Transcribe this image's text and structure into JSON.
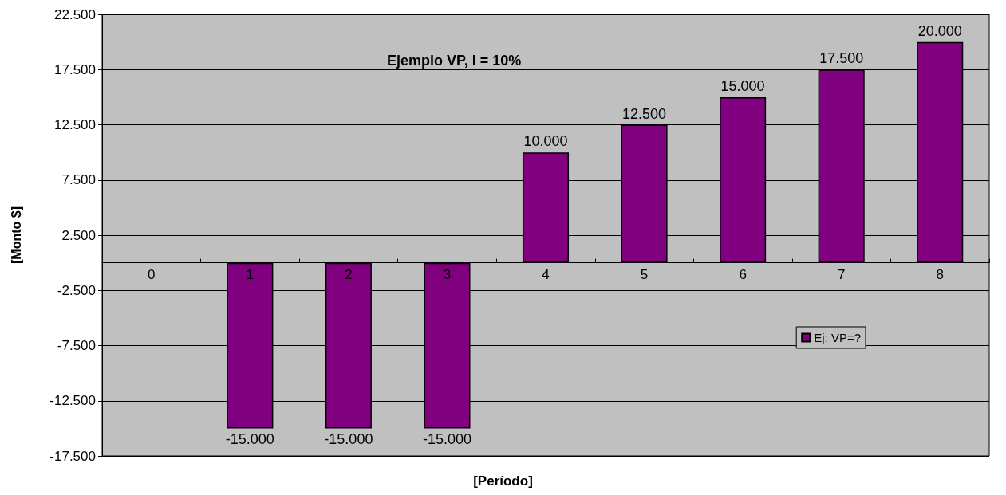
{
  "chart_data": {
    "type": "bar",
    "title": "Ejemplo VP, i = 10%",
    "xlabel": "[Período]",
    "ylabel": "[Monto $]",
    "categories": [
      "0",
      "1",
      "2",
      "3",
      "4",
      "5",
      "6",
      "7",
      "8"
    ],
    "series": [
      {
        "name": "Ej: VP=?",
        "color": "#800080",
        "values": [
          null,
          -15000,
          -15000,
          -15000,
          10000,
          12500,
          15000,
          17500,
          20000
        ],
        "value_labels": [
          null,
          "-15.000",
          "-15.000",
          "-15.000",
          "10.000",
          "12.500",
          "15.000",
          "17.500",
          "20.000"
        ]
      }
    ],
    "ylim": [
      -17500,
      22500
    ],
    "yticks": [
      {
        "value": -17500,
        "label": "-17.500"
      },
      {
        "value": -12500,
        "label": "-12.500"
      },
      {
        "value": -7500,
        "label": "-7.500"
      },
      {
        "value": -2500,
        "label": "-2.500"
      },
      {
        "value": 2500,
        "label": "2.500"
      },
      {
        "value": 7500,
        "label": "7.500"
      },
      {
        "value": 12500,
        "label": "12.500"
      },
      {
        "value": 17500,
        "label": "17.500"
      },
      {
        "value": 22500,
        "label": "22.500"
      }
    ],
    "grid": "y",
    "legend": "right"
  }
}
